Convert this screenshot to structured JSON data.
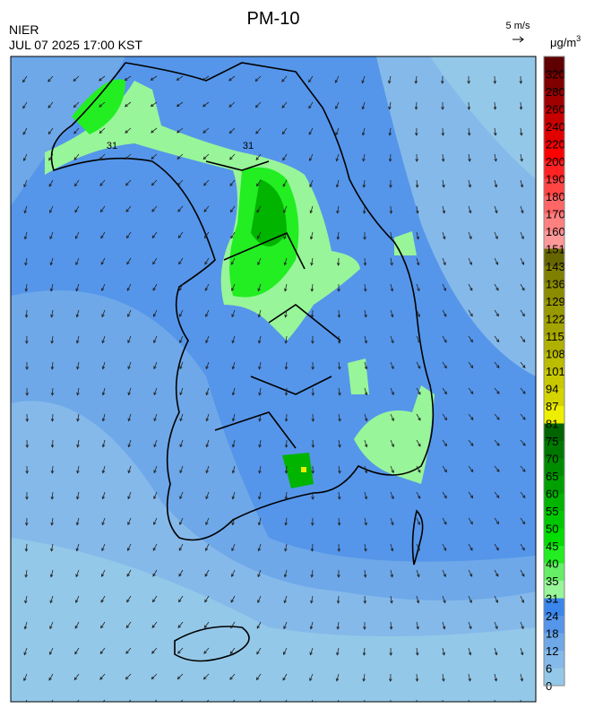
{
  "header": {
    "title": "PM-10",
    "source": "NIER",
    "timestamp": "JUL 07 2025 17:00 KST",
    "wind_scale": "5 m/s"
  },
  "contour_labels": [
    "31",
    "31"
  ],
  "legend": {
    "unit": "μg/m",
    "unit_superscript": "3",
    "levels": [
      0,
      6,
      12,
      18,
      24,
      31,
      35,
      40,
      45,
      50,
      55,
      60,
      65,
      70,
      75,
      81,
      87,
      94,
      101,
      108,
      115,
      122,
      129,
      136,
      143,
      151,
      160,
      170,
      180,
      190,
      200,
      220,
      240,
      260,
      280,
      320
    ],
    "colors": [
      "#94c8e8",
      "#85b9ea",
      "#6ea8e8",
      "#5596ea",
      "#3a86ea",
      "#99f599",
      "#66ee66",
      "#22ee22",
      "#00dd00",
      "#00c800",
      "#00b400",
      "#00a000",
      "#008c00",
      "#007800",
      "#006400",
      "#eeee00",
      "#d4d400",
      "#c8c800",
      "#bcbc00",
      "#b0b000",
      "#a4a400",
      "#989800",
      "#8c8c00",
      "#808000",
      "#666600",
      "#ff9999",
      "#ff8080",
      "#ff6666",
      "#ff4444",
      "#ff2222",
      "#ff0000",
      "#e00000",
      "#c80000",
      "#a00000",
      "#800000",
      "#600000"
    ]
  }
}
